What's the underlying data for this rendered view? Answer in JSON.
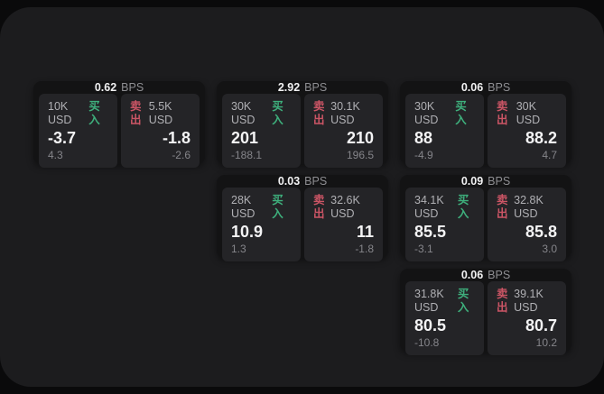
{
  "labels": {
    "bps_unit": "BPS",
    "buy": "买入",
    "sell": "卖出"
  },
  "colors": {
    "backdrop": "#0a0a0b",
    "panel_bg": "#1c1c1e",
    "card_bg": "#131314",
    "tile_bg": "#242427",
    "buy_green": "#3eaf7c",
    "sell_red": "#cb5565",
    "text_primary": "#f4f4f5",
    "text_secondary": "#b0b0b4",
    "text_muted": "#85858a"
  },
  "cards": [
    {
      "row": 1,
      "col": 1,
      "bps": "0.62",
      "buy": {
        "size": "10K USD",
        "price": "-3.7",
        "delta": "4.3"
      },
      "sell": {
        "size": "5.5K USD",
        "price": "-1.8",
        "delta": "-2.6"
      }
    },
    {
      "row": 1,
      "col": 2,
      "bps": "2.92",
      "buy": {
        "size": "30K USD",
        "price": "201",
        "delta": "-188.1"
      },
      "sell": {
        "size": "30.1K USD",
        "price": "210",
        "delta": "196.5"
      }
    },
    {
      "row": 1,
      "col": 3,
      "bps": "0.06",
      "buy": {
        "size": "30K USD",
        "price": "88",
        "delta": "-4.9"
      },
      "sell": {
        "size": "30K USD",
        "price": "88.2",
        "delta": "4.7"
      }
    },
    {
      "row": 2,
      "col": 2,
      "bps": "0.03",
      "buy": {
        "size": "28K USD",
        "price": "10.9",
        "delta": "1.3"
      },
      "sell": {
        "size": "32.6K USD",
        "price": "11",
        "delta": "-1.8"
      }
    },
    {
      "row": 2,
      "col": 3,
      "bps": "0.09",
      "buy": {
        "size": "34.1K USD",
        "price": "85.5",
        "delta": "-3.1"
      },
      "sell": {
        "size": "32.8K USD",
        "price": "85.8",
        "delta": "3.0"
      }
    },
    {
      "row": 3,
      "col": 3,
      "bps": "0.06",
      "buy": {
        "size": "31.8K USD",
        "price": "80.5",
        "delta": "-10.8"
      },
      "sell": {
        "size": "39.1K USD",
        "price": "80.7",
        "delta": "10.2"
      }
    }
  ]
}
